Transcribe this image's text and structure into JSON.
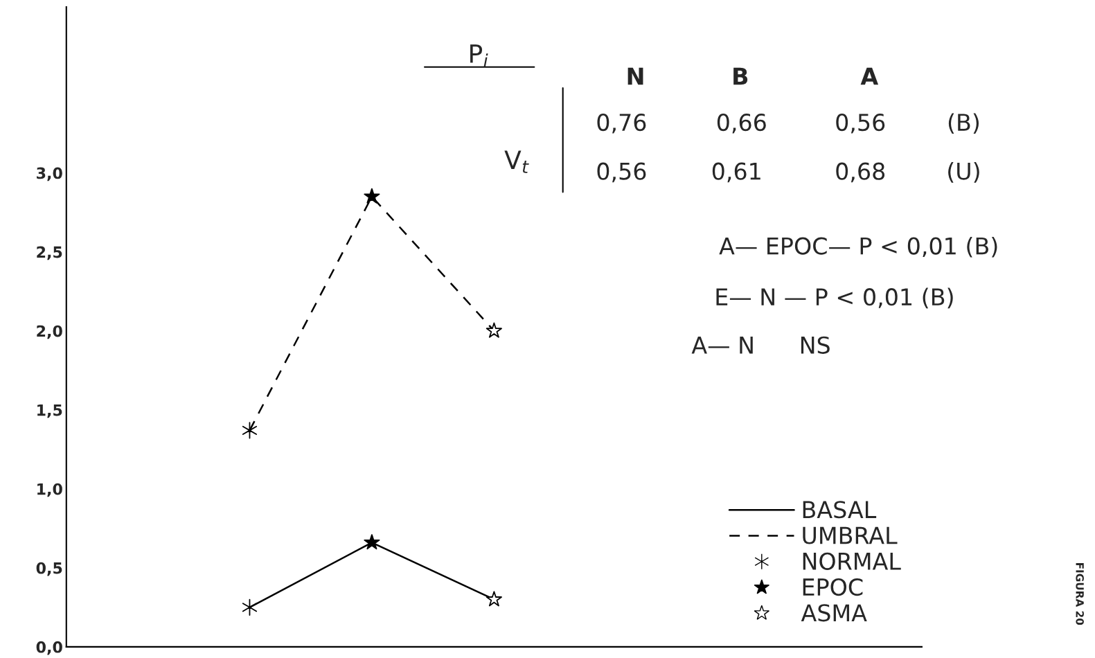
{
  "chart_data": {
    "type": "line",
    "categories": [
      null,
      null,
      null,
      null,
      null,
      null,
      null
    ],
    "ylim": [
      0,
      4.05
    ],
    "yticks": [
      {
        "value": 0,
        "label": "0,0"
      },
      {
        "value": 0.5,
        "label": "0,5"
      },
      {
        "value": 1,
        "label": "1,0"
      },
      {
        "value": 1.5,
        "label": "1,5"
      },
      {
        "value": 2,
        "label": "2,0"
      },
      {
        "value": 2.5,
        "label": "2,5"
      },
      {
        "value": 3,
        "label": "3,0"
      }
    ],
    "tick_labels": "y",
    "grid": false,
    "legend": "bottom right",
    "series": [
      {
        "name": "BASAL",
        "color": "#000000",
        "line_style": "solid",
        "marker": "none",
        "values": [
          null,
          0.25,
          0.66,
          0.3,
          null,
          null,
          null
        ]
      },
      {
        "name": "UMBRAL",
        "color": "#000000",
        "line_style": "dashed",
        "marker": "none",
        "values": [
          null,
          1.37,
          2.85,
          2.0,
          null,
          null,
          null
        ]
      },
      {
        "name": "NORMAL",
        "type": "scatter",
        "color": "#000000",
        "marker": "cross",
        "values": [
          null,
          0.25,
          null,
          null,
          null,
          null,
          null
        ]
      },
      {
        "type": "scatter",
        "color": "#000000",
        "marker": "cross",
        "values": [
          null,
          1.37,
          null,
          null,
          null,
          null,
          null
        ]
      },
      {
        "name": "EPOC",
        "type": "scatter",
        "color": "#000000",
        "marker": "star",
        "values": [
          null,
          null,
          0.66,
          null,
          null,
          null,
          null
        ]
      },
      {
        "type": "scatter",
        "color": "#000000",
        "marker": "star",
        "values": [
          null,
          null,
          2.85,
          null,
          null,
          null,
          null
        ]
      },
      {
        "name": "ASMA",
        "type": "scatter",
        "color": "#000000",
        "marker": "star",
        "values": [
          null,
          null,
          null,
          0.3,
          null,
          null,
          null
        ]
      },
      {
        "type": "scatter",
        "color": "#000000",
        "marker": "star",
        "values": [
          null,
          null,
          null,
          2.0,
          null,
          null,
          null
        ]
      }
    ],
    "annotations": [
      "P$_{i}$",
      "N",
      "B",
      "A",
      "V$_{t}$",
      "0,76",
      "0,66",
      "0,56",
      "(B)",
      "0,56",
      "0,61",
      "0,68",
      "(U)",
      "A— EPOC— P < 0,01 (B)",
      "E— N — P < 0,01 (B)",
      "A— N      NS",
      "FIGURA 20"
    ]
  }
}
